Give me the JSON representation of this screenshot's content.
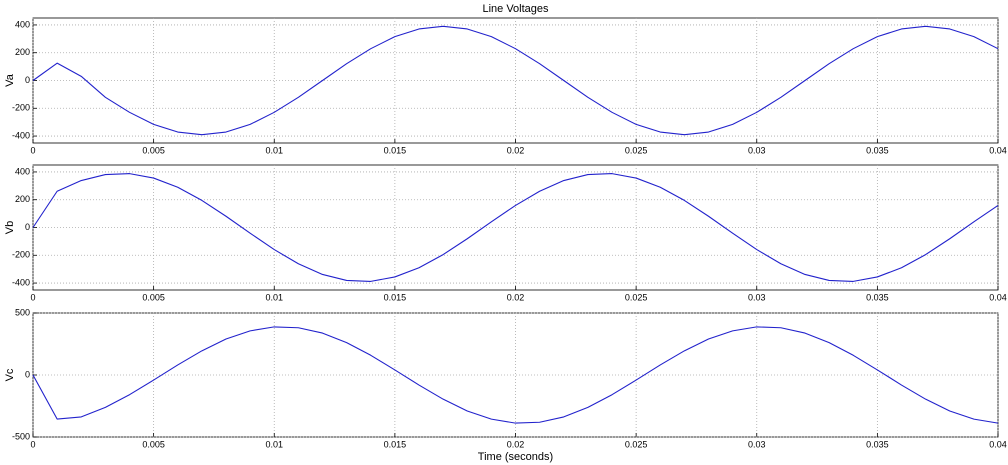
{
  "chart_data": [
    {
      "type": "line",
      "title": "Line Voltages",
      "ylabel": "Va",
      "grid": true,
      "x": [
        0,
        0.001,
        0.002,
        0.003,
        0.004,
        0.005,
        0.006,
        0.007,
        0.008,
        0.009,
        0.01,
        0.011,
        0.012,
        0.013,
        0.014,
        0.015,
        0.016,
        0.017,
        0.018,
        0.019,
        0.02,
        0.021,
        0.022,
        0.023,
        0.024,
        0.025,
        0.026,
        0.027,
        0.028,
        0.029,
        0.03,
        0.031,
        0.032,
        0.033,
        0.034,
        0.035,
        0.036,
        0.037,
        0.038,
        0.039,
        0.04
      ],
      "series": [
        {
          "name": "Va",
          "color": "#2222cc",
          "values": [
            0,
            125,
            30,
            -121,
            -229,
            -316,
            -371,
            -390,
            -371,
            -316,
            -229,
            -121,
            0,
            121,
            229,
            316,
            371,
            390,
            371,
            316,
            229,
            121,
            0,
            -121,
            -229,
            -316,
            -371,
            -390,
            -371,
            -316,
            -229,
            -121,
            0,
            121,
            229,
            316,
            371,
            390,
            371,
            316,
            229
          ]
        }
      ],
      "xlim": [
        0,
        0.04
      ],
      "xticks": [
        0,
        0.005,
        0.01,
        0.015,
        0.02,
        0.025,
        0.03,
        0.035,
        0.04
      ],
      "ylim": [
        -450,
        450
      ],
      "yticks": [
        -400,
        -200,
        0,
        200,
        400
      ]
    },
    {
      "type": "line",
      "ylabel": "Vb",
      "grid": true,
      "x": [
        0,
        0.001,
        0.002,
        0.003,
        0.004,
        0.005,
        0.006,
        0.007,
        0.008,
        0.009,
        0.01,
        0.011,
        0.012,
        0.013,
        0.014,
        0.015,
        0.016,
        0.017,
        0.018,
        0.019,
        0.02,
        0.021,
        0.022,
        0.023,
        0.024,
        0.025,
        0.026,
        0.027,
        0.028,
        0.029,
        0.03,
        0.031,
        0.032,
        0.033,
        0.034,
        0.035,
        0.036,
        0.037,
        0.038,
        0.039,
        0.04
      ],
      "series": [
        {
          "name": "Vb",
          "color": "#2222cc",
          "values": [
            0,
            261,
            338,
            381,
            388,
            356,
            290,
            195,
            81,
            -41,
            -159,
            -261,
            -338,
            -381,
            -388,
            -356,
            -290,
            -195,
            -81,
            41,
            159,
            261,
            338,
            381,
            388,
            356,
            290,
            195,
            81,
            -41,
            -159,
            -261,
            -338,
            -381,
            -388,
            -356,
            -290,
            -195,
            -81,
            41,
            159
          ]
        }
      ],
      "xlim": [
        0,
        0.04
      ],
      "xticks": [
        0,
        0.005,
        0.01,
        0.015,
        0.02,
        0.025,
        0.03,
        0.035,
        0.04
      ],
      "ylim": [
        -450,
        450
      ],
      "yticks": [
        -400,
        -200,
        0,
        200,
        400
      ]
    },
    {
      "type": "line",
      "ylabel": "Vc",
      "xlabel": "Time (seconds)",
      "grid": true,
      "x": [
        0,
        0.001,
        0.002,
        0.003,
        0.004,
        0.005,
        0.006,
        0.007,
        0.008,
        0.009,
        0.01,
        0.011,
        0.012,
        0.013,
        0.014,
        0.015,
        0.016,
        0.017,
        0.018,
        0.019,
        0.02,
        0.021,
        0.022,
        0.023,
        0.024,
        0.025,
        0.026,
        0.027,
        0.028,
        0.029,
        0.03,
        0.031,
        0.032,
        0.033,
        0.034,
        0.035,
        0.036,
        0.037,
        0.038,
        0.039,
        0.04
      ],
      "series": [
        {
          "name": "Vc",
          "color": "#2222cc",
          "values": [
            0,
            -355,
            -338,
            -261,
            -159,
            -41,
            81,
            195,
            290,
            356,
            388,
            381,
            338,
            261,
            159,
            41,
            -81,
            -195,
            -290,
            -356,
            -388,
            -381,
            -338,
            -261,
            -159,
            -41,
            81,
            195,
            290,
            356,
            388,
            381,
            338,
            261,
            159,
            41,
            -81,
            -195,
            -290,
            -356,
            -388
          ]
        }
      ],
      "xlim": [
        0,
        0.04
      ],
      "xticks": [
        0,
        0.005,
        0.01,
        0.015,
        0.02,
        0.025,
        0.03,
        0.035,
        0.04
      ],
      "ylim": [
        -500,
        500
      ],
      "yticks": [
        -500,
        0,
        500
      ]
    }
  ]
}
